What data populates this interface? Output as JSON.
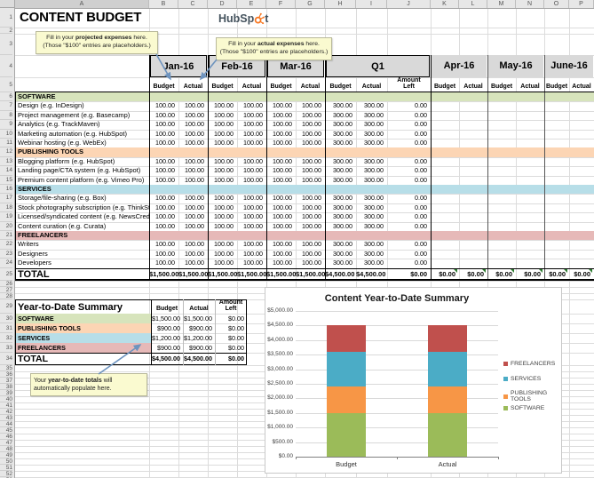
{
  "sheet": {
    "title": "CONTENT BUDGET",
    "logo": {
      "prefix": "HubSp",
      "suffix": "t"
    },
    "column_letters": [
      "A",
      "B",
      "C",
      "D",
      "E",
      "F",
      "G",
      "H",
      "I",
      "J",
      "K",
      "L",
      "M",
      "N",
      "O",
      "P"
    ],
    "row_count": 53
  },
  "callouts": {
    "projected": {
      "pre": "Fill in your ",
      "bold": "projected expenses",
      "post": " here.",
      "line2": "(Those \"$100\" entries are placeholders.)"
    },
    "actual": {
      "pre": "Fill in your ",
      "bold": "actual expenses",
      "post": " here.",
      "line2": "(Those \"$100\" entries are placeholders.)"
    },
    "ytd": {
      "pre": "Your ",
      "bold": "year-to-date totals",
      "post": " will",
      "line2": "automatically populate here."
    }
  },
  "main_table": {
    "month_groups": [
      {
        "label": "Jan-16",
        "sub": [
          "Budget",
          "Actual"
        ]
      },
      {
        "label": "Feb-16",
        "sub": [
          "Budget",
          "Actual"
        ]
      },
      {
        "label": "Mar-16",
        "sub": [
          "Budget",
          "Actual"
        ]
      },
      {
        "label": "Q1",
        "sub": [
          "Budget",
          "Actual",
          "Amount Left"
        ]
      },
      {
        "label": "Apr-16",
        "sub": [
          "Budget",
          "Actual"
        ]
      },
      {
        "label": "May-16",
        "sub": [
          "Budget",
          "Actual"
        ]
      },
      {
        "label": "June-16",
        "sub": [
          "Budget",
          "Actual"
        ]
      }
    ],
    "rows": [
      {
        "type": "section",
        "label": "SOFTWARE",
        "key": "software"
      },
      {
        "type": "item",
        "label": "Design (e.g. InDesign)",
        "values": [
          "100.00",
          "100.00",
          "100.00",
          "100.00",
          "100.00",
          "100.00",
          "300.00",
          "300.00",
          "0.00"
        ]
      },
      {
        "type": "item",
        "label": "Project management (e.g. Basecamp)",
        "values": [
          "100.00",
          "100.00",
          "100.00",
          "100.00",
          "100.00",
          "100.00",
          "300.00",
          "300.00",
          "0.00"
        ]
      },
      {
        "type": "item",
        "label": "Analytics (e.g. TrackMaven)",
        "values": [
          "100.00",
          "100.00",
          "100.00",
          "100.00",
          "100.00",
          "100.00",
          "300.00",
          "300.00",
          "0.00"
        ]
      },
      {
        "type": "item",
        "label": "Marketing automation (e.g. HubSpot)",
        "values": [
          "100.00",
          "100.00",
          "100.00",
          "100.00",
          "100.00",
          "100.00",
          "300.00",
          "300.00",
          "0.00"
        ]
      },
      {
        "type": "item",
        "label": "Webinar hosting (e.g. WebEx)",
        "values": [
          "100.00",
          "100.00",
          "100.00",
          "100.00",
          "100.00",
          "100.00",
          "300.00",
          "300.00",
          "0.00"
        ]
      },
      {
        "type": "section",
        "label": "PUBLISHING TOOLS",
        "key": "publishing"
      },
      {
        "type": "item",
        "label": "Blogging platform (e.g. HubSpot)",
        "values": [
          "100.00",
          "100.00",
          "100.00",
          "100.00",
          "100.00",
          "100.00",
          "300.00",
          "300.00",
          "0.00"
        ]
      },
      {
        "type": "item",
        "label": "Landing page/CTA system (e.g. HubSpot)",
        "values": [
          "100.00",
          "100.00",
          "100.00",
          "100.00",
          "100.00",
          "100.00",
          "300.00",
          "300.00",
          "0.00"
        ]
      },
      {
        "type": "item",
        "label": "Premium content platform (e.g. Vimeo Pro)",
        "values": [
          "100.00",
          "100.00",
          "100.00",
          "100.00",
          "100.00",
          "100.00",
          "300.00",
          "300.00",
          "0.00"
        ]
      },
      {
        "type": "section",
        "label": "SERVICES",
        "key": "services"
      },
      {
        "type": "item",
        "label": "Storage/file-sharing (e.g. Box)",
        "values": [
          "100.00",
          "100.00",
          "100.00",
          "100.00",
          "100.00",
          "100.00",
          "300.00",
          "300.00",
          "0.00"
        ]
      },
      {
        "type": "item",
        "label": "Stock photography subscription (e.g. ThinkStock)",
        "values": [
          "100.00",
          "100.00",
          "100.00",
          "100.00",
          "100.00",
          "100.00",
          "300.00",
          "300.00",
          "0.00"
        ]
      },
      {
        "type": "item",
        "label": "Licensed/syndicated content (e.g. NewsCred)",
        "values": [
          "100.00",
          "100.00",
          "100.00",
          "100.00",
          "100.00",
          "100.00",
          "300.00",
          "300.00",
          "0.00"
        ]
      },
      {
        "type": "item",
        "label": "Content curation (e.g. Curata)",
        "values": [
          "100.00",
          "100.00",
          "100.00",
          "100.00",
          "100.00",
          "100.00",
          "300.00",
          "300.00",
          "0.00"
        ]
      },
      {
        "type": "section",
        "label": "FREELANCERS",
        "key": "freelancers"
      },
      {
        "type": "item",
        "label": "Writers",
        "values": [
          "100.00",
          "100.00",
          "100.00",
          "100.00",
          "100.00",
          "100.00",
          "300.00",
          "300.00",
          "0.00"
        ]
      },
      {
        "type": "item",
        "label": "Designers",
        "values": [
          "100.00",
          "100.00",
          "100.00",
          "100.00",
          "100.00",
          "100.00",
          "300.00",
          "300.00",
          "0.00"
        ]
      },
      {
        "type": "item",
        "label": "Developers",
        "values": [
          "100.00",
          "100.00",
          "100.00",
          "100.00",
          "100.00",
          "100.00",
          "300.00",
          "300.00",
          "0.00"
        ]
      },
      {
        "type": "total",
        "label": "TOTAL",
        "values": [
          "$1,500.00",
          "$1,500.00",
          "$1,500.00",
          "$1,500.00",
          "$1,500.00",
          "$1,500.00",
          "$4,500.00",
          "$4,500.00",
          "$0.00",
          "$0.00",
          "$0.00",
          "$0.00",
          "$0.00",
          "$0.00",
          "$0.00"
        ]
      }
    ]
  },
  "summary_table": {
    "title": "Year-to-Date Summary",
    "columns": [
      "Budget",
      "Actual",
      "Amount Left"
    ],
    "rows": [
      {
        "type": "section",
        "label": "SOFTWARE",
        "key": "software",
        "values": [
          "$1,500.00",
          "$1,500.00",
          "$0.00"
        ]
      },
      {
        "type": "section",
        "label": "PUBLISHING TOOLS",
        "key": "publishing",
        "values": [
          "$900.00",
          "$900.00",
          "$0.00"
        ]
      },
      {
        "type": "section",
        "label": "SERVICES",
        "key": "services",
        "values": [
          "$1,200.00",
          "$1,200.00",
          "$0.00"
        ]
      },
      {
        "type": "section",
        "label": "FREELANCERS",
        "key": "freelancers",
        "values": [
          "$900.00",
          "$900.00",
          "$0.00"
        ]
      },
      {
        "type": "total",
        "label": "TOTAL",
        "values": [
          "$4,500.00",
          "$4,500.00",
          "$0.00"
        ]
      }
    ]
  },
  "chart_data": {
    "type": "bar",
    "stacked": true,
    "title": "Content Year-to-Date Summary",
    "categories": [
      "Budget",
      "Actual"
    ],
    "series": [
      {
        "name": "SOFTWARE",
        "color": "#9BBB59",
        "values": [
          1500,
          1500
        ]
      },
      {
        "name": "PUBLISHING TOOLS",
        "color": "#F79646",
        "values": [
          900,
          900
        ]
      },
      {
        "name": "SERVICES",
        "color": "#4BACC6",
        "values": [
          1200,
          1200
        ]
      },
      {
        "name": "FREELANCERS",
        "color": "#C0504D",
        "values": [
          900,
          900
        ]
      }
    ],
    "ylim": [
      0,
      5000
    ],
    "ytick_step": 500,
    "ytick_format": "$#,##0.00",
    "grid": true,
    "legend_position": "right",
    "legend_order": [
      "FREELANCERS",
      "SERVICES",
      "PUBLISHING TOOLS",
      "SOFTWARE"
    ]
  },
  "colors": {
    "software": "#D7E4BC",
    "publishing": "#FCD5B4",
    "services": "#B7DEE8",
    "freelancers": "#E6B9B8",
    "header_bg": "#D9D9D9",
    "callout_bg": "#FAFAD0",
    "arrow": "#6D93BE",
    "hubspot_orange": "#F8761F",
    "indicator_green": "#2F7D32"
  }
}
